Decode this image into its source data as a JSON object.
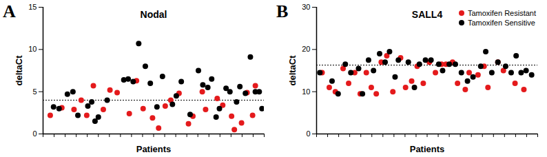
{
  "chart_data": [
    {
      "type": "scatter",
      "panel": "A",
      "title": "Nodal",
      "x_label": "Patients",
      "y_label": "deltaCt",
      "xlim": [
        0,
        40
      ],
      "xticks": [
        0,
        2,
        4,
        6,
        8,
        10,
        12,
        14,
        16,
        18,
        20,
        22,
        24,
        26,
        28,
        30,
        32,
        34,
        36,
        38,
        40
      ],
      "ylim": [
        0,
        15
      ],
      "yticks": [
        0,
        5,
        10,
        15
      ],
      "tick_labels": "y",
      "reference_line": {
        "value": 4,
        "line_style": "dashed"
      },
      "series": [
        {
          "name": "Tamoxifen Resistant",
          "color": "#e41a1c",
          "marker": "circle",
          "x": [
            1.3,
            3.4,
            5.6,
            6.9,
            7.9,
            9.1,
            10.9,
            12.1,
            13.4,
            15.6,
            16.9,
            18.1,
            19.8,
            20.9,
            22.1,
            23.1,
            24.6,
            26.3,
            27.1,
            28.8,
            29.4,
            31.5,
            32.5,
            34.1,
            34.6,
            35.9,
            36.9,
            37.9,
            38.4
          ],
          "values": [
            2.2,
            3.1,
            2.9,
            4.0,
            2.2,
            5.7,
            2.9,
            5.2,
            4.9,
            2.4,
            6.3,
            3.0,
            1.9,
            0.7,
            3.3,
            4.0,
            4.8,
            1.2,
            2.1,
            5.0,
            2.9,
            4.2,
            3.4,
            2.1,
            0.5,
            1.3,
            4.9,
            2.2,
            5.7
          ]
        },
        {
          "name": "Tamoxifen Sensitive",
          "color": "#000000",
          "marker": "circle",
          "x": [
            1.9,
            2.9,
            4.4,
            5.4,
            6.3,
            8.1,
            8.8,
            9.4,
            10.0,
            11.6,
            14.6,
            15.4,
            16.3,
            17.3,
            18.5,
            19.4,
            20.6,
            21.6,
            23.4,
            24.1,
            25.0,
            26.6,
            28.1,
            28.9,
            29.8,
            30.5,
            31.3,
            31.9,
            33.1,
            33.8,
            35.0,
            35.6,
            36.6,
            37.5,
            38.4,
            39.1,
            39.6
          ],
          "values": [
            3.2,
            3.0,
            4.7,
            5.0,
            2.2,
            3.3,
            3.8,
            1.5,
            2.0,
            4.0,
            6.4,
            6.5,
            6.2,
            10.7,
            8.0,
            6.0,
            3.2,
            6.8,
            3.5,
            4.5,
            6.2,
            2.3,
            7.5,
            5.8,
            5.5,
            6.5,
            2.0,
            3.0,
            5.4,
            5.0,
            3.8,
            5.6,
            4.8,
            9.1,
            5.0,
            5.0,
            3.0
          ]
        }
      ]
    },
    {
      "type": "scatter",
      "panel": "B",
      "title": "SALL4",
      "x_label": "Patients",
      "y_label": "deltaCt",
      "xlim": [
        0,
        40
      ],
      "xticks": [
        0,
        2,
        4,
        6,
        8,
        10,
        12,
        14,
        16,
        18,
        20,
        22,
        24,
        26,
        28,
        30,
        32,
        34,
        36,
        38,
        40
      ],
      "ylim": [
        0,
        30
      ],
      "yticks": [
        0,
        10,
        20,
        30
      ],
      "tick_labels": "y",
      "legend": "top-right",
      "reference_line": {
        "value": 16.3,
        "line_style": "dashed"
      },
      "series": [
        {
          "name": "Tamoxifen Resistant",
          "color": "#e41a1c",
          "marker": "circle",
          "x": [
            1.0,
            2.3,
            3.4,
            4.8,
            5.8,
            6.9,
            7.9,
            9.0,
            9.9,
            10.8,
            11.7,
            12.7,
            13.8,
            15.2,
            16.1,
            17.2,
            18.2,
            19.3,
            20.4,
            21.5,
            22.6,
            23.4,
            24.6,
            25.5,
            26.9,
            27.6,
            29.2,
            30.3,
            31.0,
            32.8,
            33.8,
            35.9,
            37.5
          ],
          "values": [
            14.5,
            11.0,
            10.0,
            15.5,
            12.0,
            14.5,
            9.5,
            14.5,
            11.0,
            9.5,
            17.0,
            18.5,
            10.0,
            18.0,
            11.0,
            12.5,
            16.0,
            12.0,
            17.0,
            14.5,
            16.5,
            16.5,
            17.0,
            12.0,
            10.5,
            14.5,
            14.0,
            16.0,
            11.0,
            17.0,
            15.0,
            12.0,
            10.5
          ]
        },
        {
          "name": "Tamoxifen Sensitive",
          "color": "#000000",
          "marker": "circle",
          "x": [
            0.6,
            2.8,
            3.9,
            5.2,
            6.2,
            7.6,
            8.3,
            9.4,
            10.3,
            11.4,
            12.4,
            13.2,
            14.2,
            14.8,
            16.6,
            17.7,
            18.6,
            19.7,
            20.7,
            22.1,
            22.8,
            24.0,
            25.1,
            26.2,
            27.3,
            28.3,
            29.7,
            30.6,
            31.7,
            32.8,
            34.2,
            35.2,
            36.1,
            37.0,
            37.9,
            38.9
          ],
          "values": [
            14.5,
            12.5,
            9.5,
            16.5,
            14.5,
            15.5,
            9.5,
            17.5,
            15.0,
            19.0,
            17.0,
            19.5,
            13.5,
            17.5,
            17.0,
            11.0,
            16.5,
            17.5,
            17.5,
            16.5,
            15.0,
            16.5,
            16.5,
            14.5,
            12.5,
            13.5,
            16.0,
            19.5,
            14.5,
            17.0,
            16.0,
            14.5,
            18.5,
            14.5,
            15.0,
            14.0
          ]
        }
      ]
    }
  ]
}
